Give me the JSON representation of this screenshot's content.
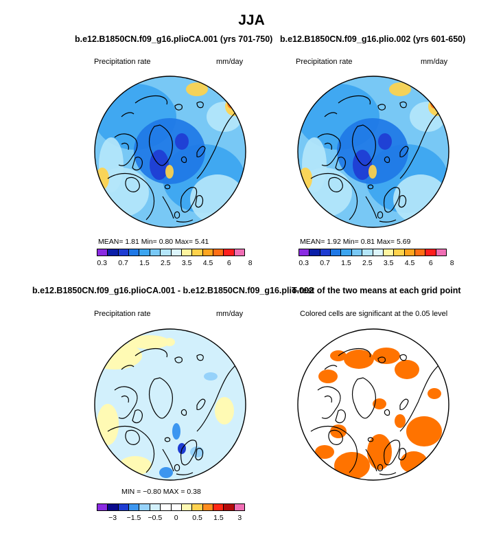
{
  "main_title": "JJA",
  "panels": [
    {
      "title": "b.e12.B1850CN.f09_g16.plioCA.001 (yrs 701-750)",
      "left_label": "Precipitation rate",
      "right_label": "mm/day",
      "stats": "MEAN=   1.81   Min=    0.80   Max=    5.41",
      "colorbar": {
        "ticks": [
          "0.3",
          "0.7",
          "1.5",
          "2.5",
          "3.5",
          "4.5",
          "6",
          "8"
        ],
        "colors": [
          "#8a2be2",
          "#0a1ea8",
          "#1e3cd2",
          "#1e78e6",
          "#3ca5f0",
          "#78c8f5",
          "#b4e6fa",
          "#dcf5fc",
          "#fff5a0",
          "#ffd24b",
          "#ffa51e",
          "#ff6e14",
          "#ff1e1e",
          "#f06eb4"
        ]
      }
    },
    {
      "title": "b.e12.B1850CN.f09_g16.plio.002 (yrs 601-650)",
      "left_label": "Precipitation rate",
      "right_label": "mm/day",
      "stats": "MEAN=   1.92   Min=    0.81   Max=    5.69",
      "colorbar": {
        "ticks": [
          "0.3",
          "0.7",
          "1.5",
          "2.5",
          "3.5",
          "4.5",
          "6",
          "8"
        ],
        "colors": [
          "#8a2be2",
          "#0a1ea8",
          "#1e3cd2",
          "#1e78e6",
          "#3ca5f0",
          "#78c8f5",
          "#b4e6fa",
          "#dcf5fc",
          "#fff5a0",
          "#ffd24b",
          "#ffa51e",
          "#ff6e14",
          "#ff1e1e",
          "#f06eb4"
        ]
      }
    },
    {
      "title": "b.e12.B1850CN.f09_g16.plioCA.001 - b.e12.B1850CN.f09_g16.plio.002",
      "left_label": "Precipitation rate",
      "right_label": "mm/day",
      "stats": "MIN  =    −0.80   MAX  =    0.38",
      "colorbar": {
        "ticks": [
          "−3",
          "−1.5",
          "−0.5",
          "0",
          "0.5",
          "1.5",
          "3"
        ],
        "colors": [
          "#8a2be2",
          "#0a0a8c",
          "#1e3cd2",
          "#3c96f0",
          "#96d2fa",
          "#d2f0fc",
          "#ffffff",
          "#ffffff",
          "#fffab4",
          "#ffd250",
          "#ff8c1e",
          "#ff2814",
          "#b40a0a",
          "#f06eb4"
        ]
      }
    },
    {
      "title": "T-test of the two means at each grid point",
      "left_label": "Colored cells are significant at the 0.05 level",
      "right_label": ""
    }
  ],
  "chart_data": [
    {
      "type": "heatmap",
      "title": "b.e12.B1850CN.f09_g16.plioCA.001 (yrs 701-750)",
      "variable": "Precipitation rate",
      "units": "mm/day",
      "projection": "north polar stereographic",
      "mean": 1.81,
      "min": 0.8,
      "max": 5.41,
      "levels": [
        0.3,
        0.7,
        1.5,
        2.5,
        3.5,
        4.5,
        6,
        8
      ]
    },
    {
      "type": "heatmap",
      "title": "b.e12.B1850CN.f09_g16.plio.002 (yrs 601-650)",
      "variable": "Precipitation rate",
      "units": "mm/day",
      "projection": "north polar stereographic",
      "mean": 1.92,
      "min": 0.81,
      "max": 5.69,
      "levels": [
        0.3,
        0.7,
        1.5,
        2.5,
        3.5,
        4.5,
        6,
        8
      ]
    },
    {
      "type": "heatmap",
      "title": "b.e12.B1850CN.f09_g16.plioCA.001 - b.e12.B1850CN.f09_g16.plio.002",
      "variable": "Precipitation rate",
      "units": "mm/day",
      "projection": "north polar stereographic",
      "min": -0.8,
      "max": 0.38,
      "levels": [
        -3,
        -1.5,
        -0.5,
        0,
        0.5,
        1.5,
        3
      ]
    },
    {
      "type": "heatmap",
      "title": "T-test of the two means at each grid point",
      "note": "Colored cells are significant at the 0.05 level",
      "significance_level": 0.05,
      "projection": "north polar stereographic",
      "significant_color": "#ff7300"
    }
  ]
}
